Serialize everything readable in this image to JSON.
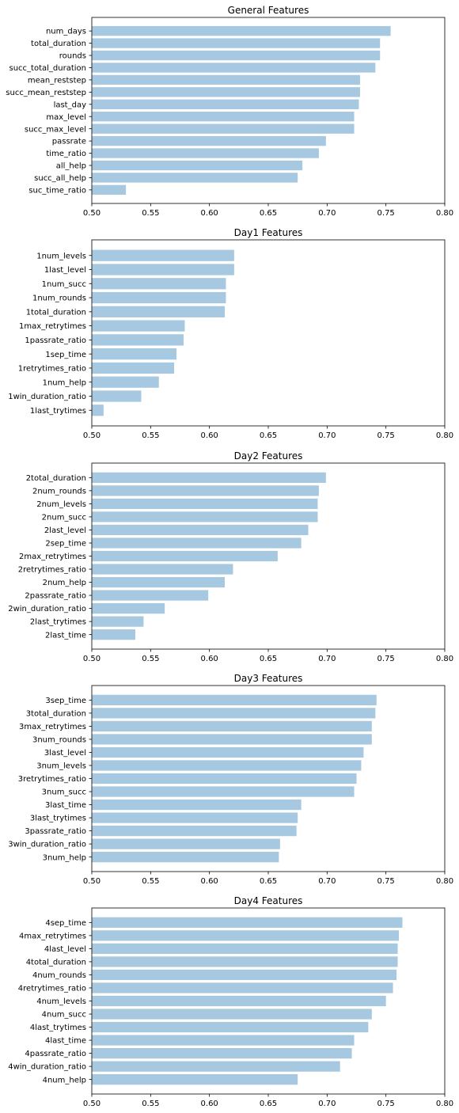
{
  "figure": {
    "bar_color": "#a6c8e0",
    "axis_color": "#000000",
    "background": "#ffffff"
  },
  "chart_data": [
    {
      "type": "bar",
      "orientation": "horizontal",
      "title": "General Features",
      "xlabel": "",
      "ylabel": "",
      "xlim": [
        0.5,
        0.8
      ],
      "xticks": [
        "0.50",
        "0.55",
        "0.60",
        "0.65",
        "0.70",
        "0.75",
        "0.80"
      ],
      "grid": false,
      "categories": [
        "num_days",
        "total_duration",
        "rounds",
        "succ_total_duration",
        "mean_reststep",
        "succ_mean_reststep",
        "last_day",
        "max_level",
        "succ_max_level",
        "passrate",
        "time_ratio",
        "all_help",
        "succ_all_help",
        "suc_time_ratio"
      ],
      "values": [
        0.754,
        0.745,
        0.745,
        0.741,
        0.728,
        0.728,
        0.727,
        0.723,
        0.723,
        0.699,
        0.693,
        0.679,
        0.675,
        0.529
      ]
    },
    {
      "type": "bar",
      "orientation": "horizontal",
      "title": "Day1 Features",
      "xlabel": "",
      "ylabel": "",
      "xlim": [
        0.5,
        0.8
      ],
      "xticks": [
        "0.50",
        "0.55",
        "0.60",
        "0.65",
        "0.70",
        "0.75",
        "0.80"
      ],
      "grid": false,
      "categories": [
        "1num_levels",
        "1last_level",
        "1num_succ",
        "1num_rounds",
        "1total_duration",
        "1max_retrytimes",
        "1passrate_ratio",
        "1sep_time",
        "1retrytimes_ratio",
        "1num_help",
        "1win_duration_ratio",
        "1last_trytimes"
      ],
      "values": [
        0.621,
        0.621,
        0.614,
        0.614,
        0.613,
        0.579,
        0.578,
        0.572,
        0.57,
        0.557,
        0.542,
        0.51
      ]
    },
    {
      "type": "bar",
      "orientation": "horizontal",
      "title": "Day2 Features",
      "xlabel": "",
      "ylabel": "",
      "xlim": [
        0.5,
        0.8
      ],
      "xticks": [
        "0.50",
        "0.55",
        "0.60",
        "0.65",
        "0.70",
        "0.75",
        "0.80"
      ],
      "grid": false,
      "categories": [
        "2total_duration",
        "2num_rounds",
        "2num_levels",
        "2num_succ",
        "2last_level",
        "2sep_time",
        "2max_retrytimes",
        "2retrytimes_ratio",
        "2num_help",
        "2passrate_ratio",
        "2win_duration_ratio",
        "2last_trytimes",
        "2last_time"
      ],
      "values": [
        0.699,
        0.693,
        0.692,
        0.692,
        0.684,
        0.678,
        0.658,
        0.62,
        0.613,
        0.599,
        0.562,
        0.544,
        0.537
      ]
    },
    {
      "type": "bar",
      "orientation": "horizontal",
      "title": "Day3 Features",
      "xlabel": "",
      "ylabel": "",
      "xlim": [
        0.5,
        0.8
      ],
      "xticks": [
        "0.50",
        "0.55",
        "0.60",
        "0.65",
        "0.70",
        "0.75",
        "0.80"
      ],
      "grid": false,
      "categories": [
        "3sep_time",
        "3total_duration",
        "3max_retrytimes",
        "3num_rounds",
        "3last_level",
        "3num_levels",
        "3retrytimes_ratio",
        "3num_succ",
        "3last_time",
        "3last_trytimes",
        "3passrate_ratio",
        "3win_duration_ratio",
        "3num_help"
      ],
      "values": [
        0.742,
        0.741,
        0.738,
        0.738,
        0.731,
        0.729,
        0.725,
        0.723,
        0.678,
        0.675,
        0.674,
        0.66,
        0.659
      ]
    },
    {
      "type": "bar",
      "orientation": "horizontal",
      "title": "Day4 Features",
      "xlabel": "",
      "ylabel": "",
      "xlim": [
        0.5,
        0.8
      ],
      "xticks": [
        "0.50",
        "0.55",
        "0.60",
        "0.65",
        "0.70",
        "0.75",
        "0.80"
      ],
      "grid": false,
      "categories": [
        "4sep_time",
        "4max_retrytimes",
        "4last_level",
        "4total_duration",
        "4num_rounds",
        "4retrytimes_ratio",
        "4num_levels",
        "4num_succ",
        "4last_trytimes",
        "4last_time",
        "4passrate_ratio",
        "4win_duration_ratio",
        "4num_help"
      ],
      "values": [
        0.764,
        0.761,
        0.76,
        0.76,
        0.759,
        0.756,
        0.75,
        0.738,
        0.735,
        0.723,
        0.721,
        0.711,
        0.675
      ]
    }
  ]
}
